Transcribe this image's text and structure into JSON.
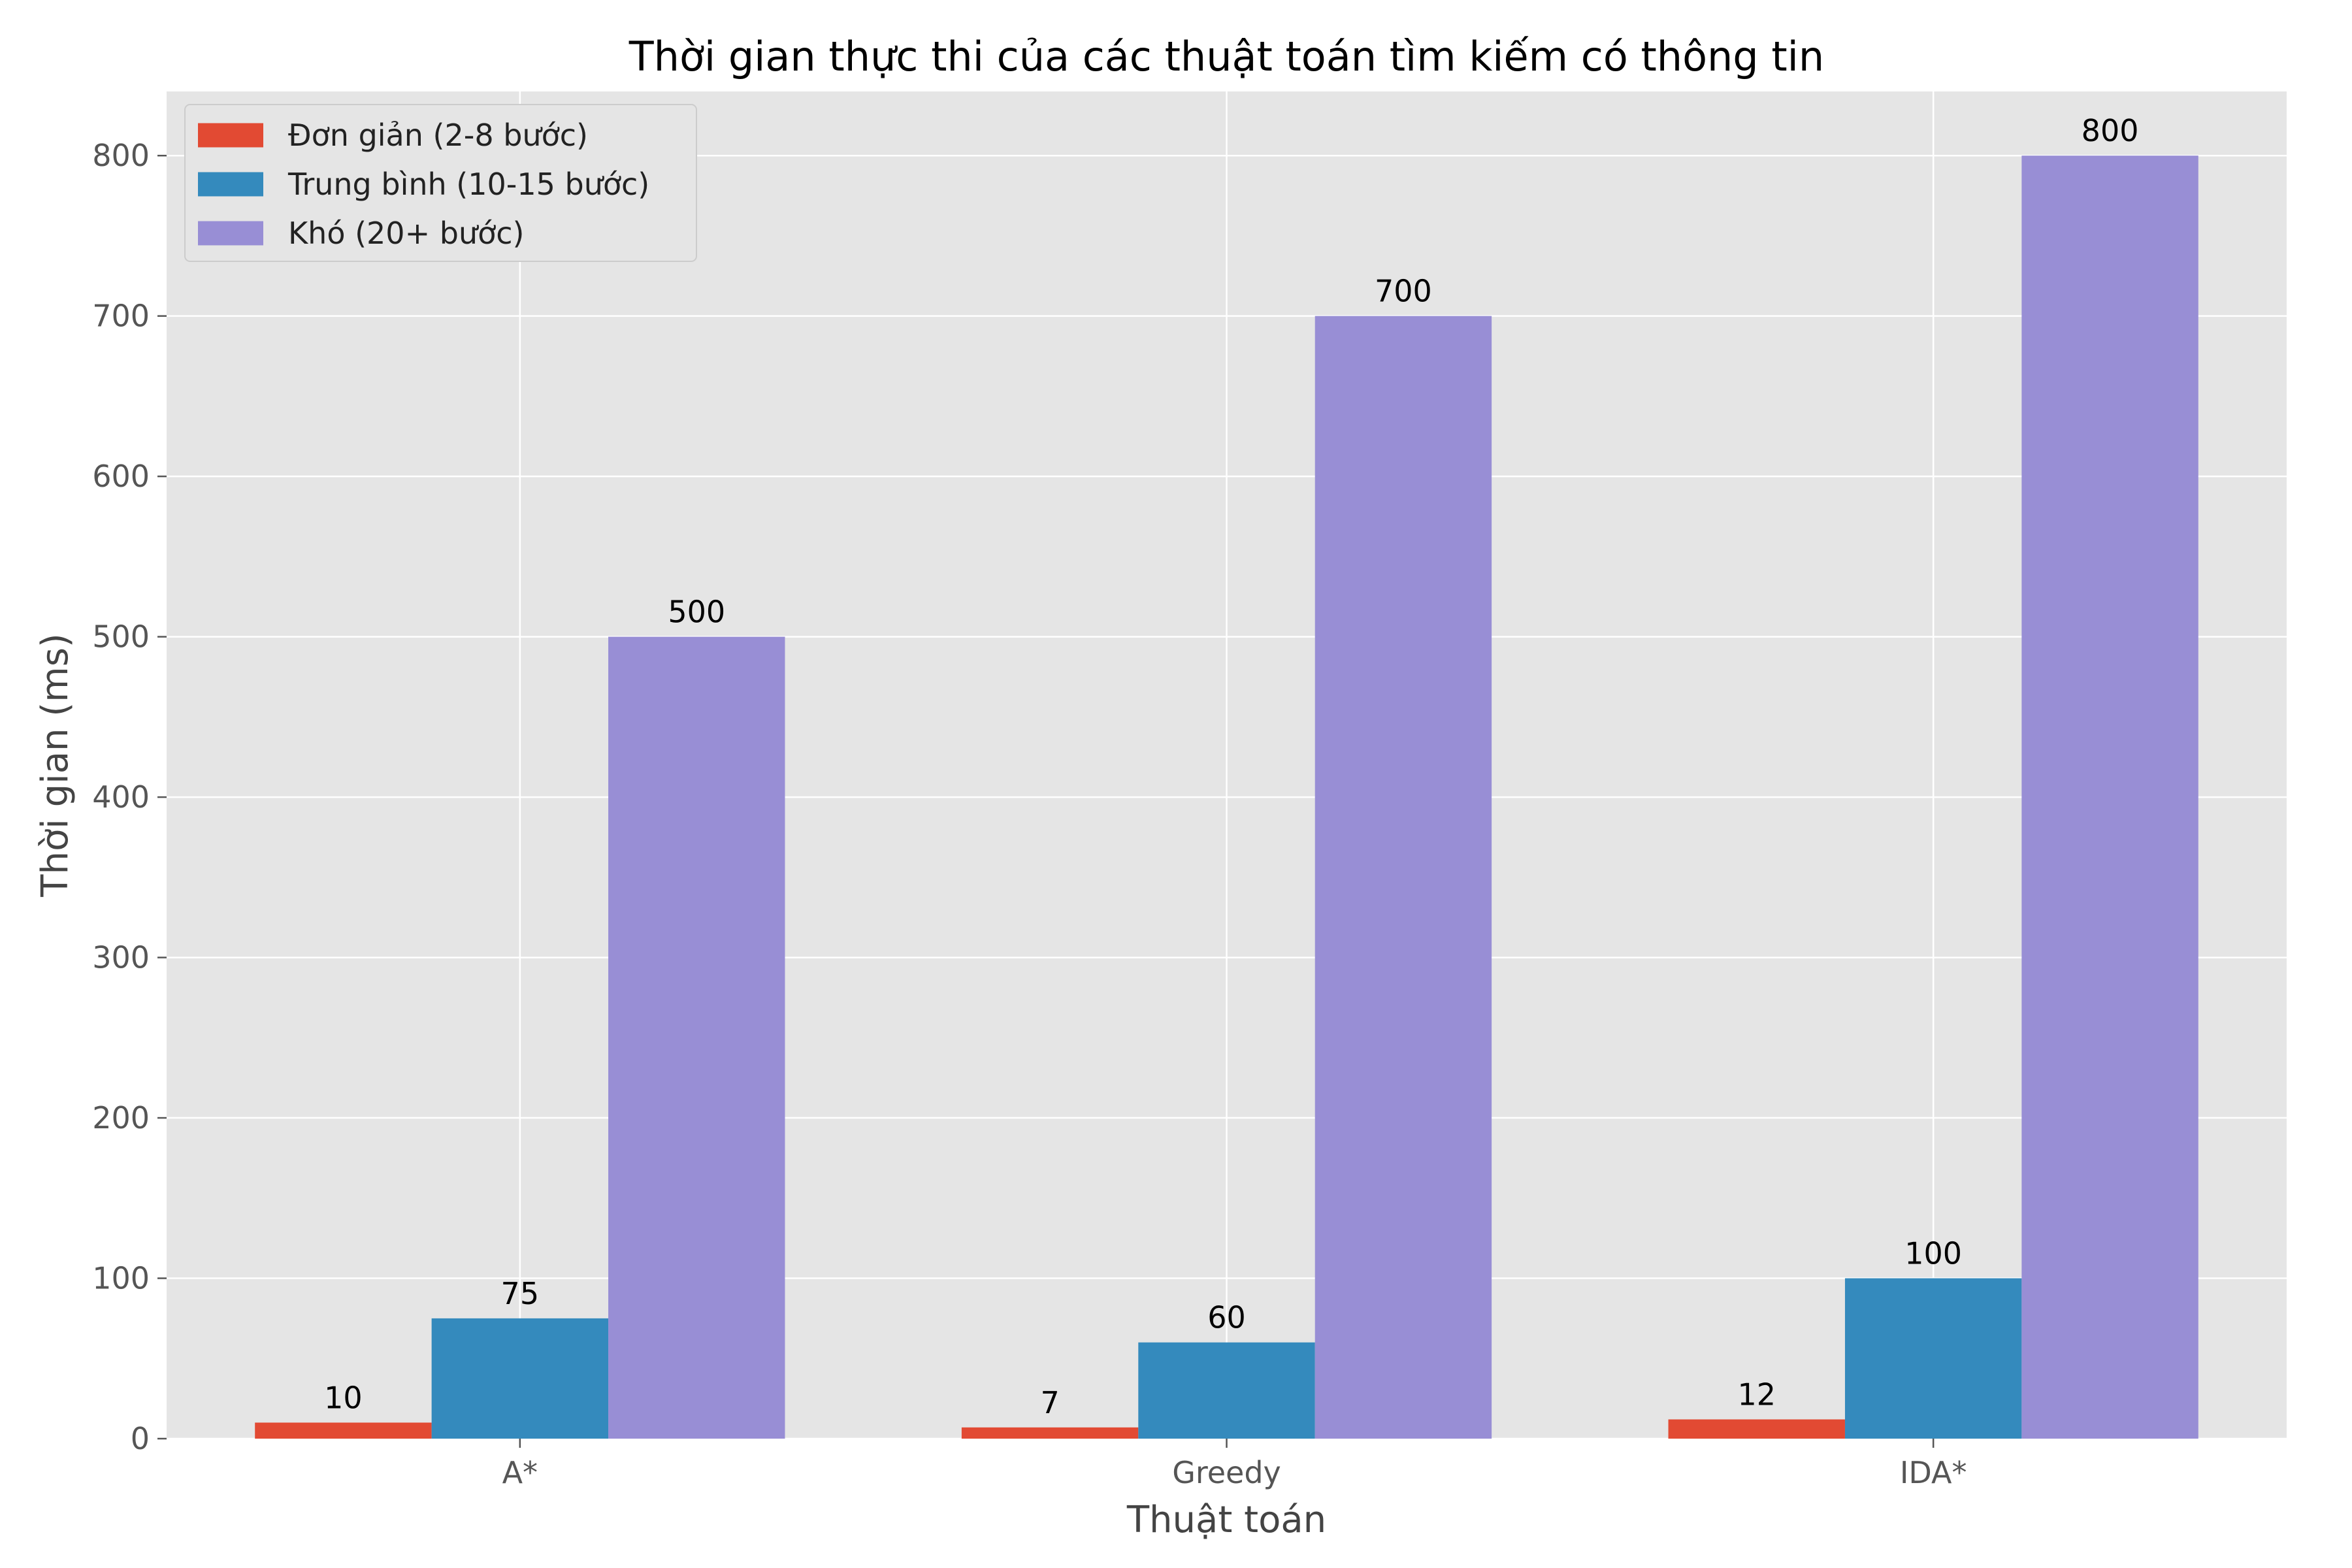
{
  "chart_data": {
    "type": "bar",
    "title": "Thời gian thực thi của các thuật toán tìm kiếm có thông tin",
    "xlabel": "Thuật toán",
    "ylabel": "Thời gian (ms)",
    "categories": [
      "A*",
      "Greedy",
      "IDA*"
    ],
    "series": [
      {
        "name": "Đơn giản (2-8 bước)",
        "color": "#E24A33",
        "values": [
          10,
          7,
          12
        ]
      },
      {
        "name": "Trung bình (10-15 bước)",
        "color": "#348ABD",
        "values": [
          75,
          60,
          100
        ]
      },
      {
        "name": "Khó (20+ bước)",
        "color": "#988ED5",
        "values": [
          500,
          700,
          800
        ]
      }
    ],
    "ylim": [
      0,
      840
    ],
    "yticks": [
      0,
      100,
      200,
      300,
      400,
      500,
      600,
      700,
      800
    ],
    "grid": true,
    "legend_position": "top-left",
    "background": "#E5E5E5"
  }
}
